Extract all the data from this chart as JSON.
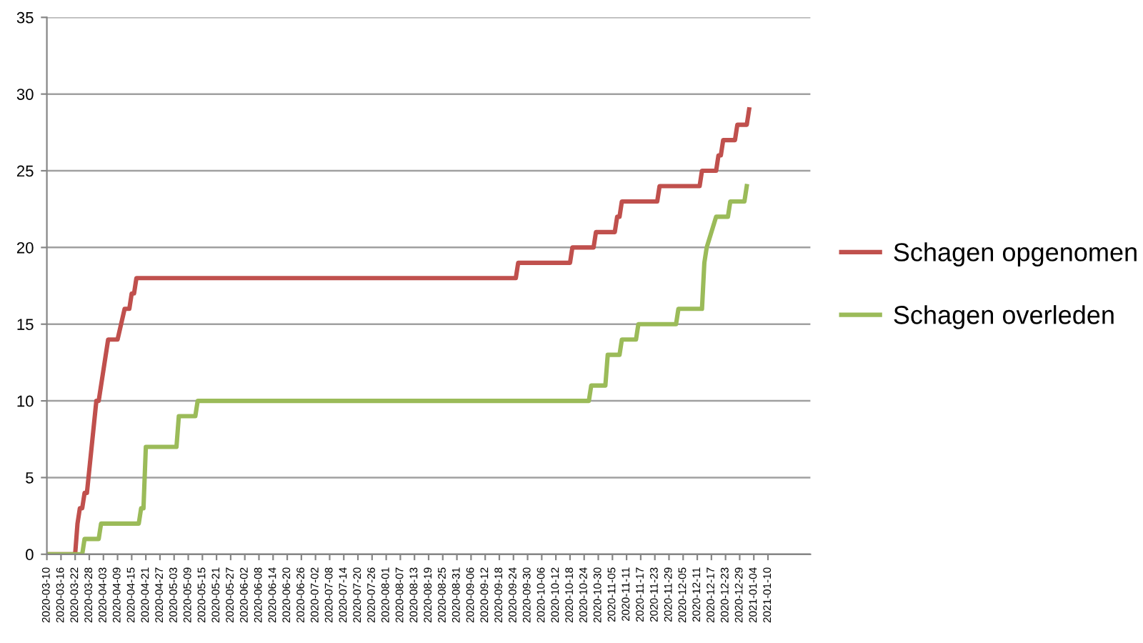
{
  "chart_data": {
    "type": "line",
    "xlim": [
      "2020-03-10",
      "2021-01-28"
    ],
    "xticks": [
      "2020-03-10",
      "2020-03-16",
      "2020-03-22",
      "2020-03-28",
      "2020-04-03",
      "2020-04-09",
      "2020-04-15",
      "2020-04-21",
      "2020-04-27",
      "2020-05-03",
      "2020-05-09",
      "2020-05-15",
      "2020-05-21",
      "2020-05-27",
      "2020-06-02",
      "2020-06-08",
      "2020-06-14",
      "2020-06-20",
      "2020-06-26",
      "2020-07-02",
      "2020-07-08",
      "2020-07-14",
      "2020-07-20",
      "2020-07-26",
      "2020-08-01",
      "2020-08-07",
      "2020-08-13",
      "2020-08-19",
      "2020-08-25",
      "2020-08-31",
      "2020-09-06",
      "2020-09-12",
      "2020-09-18",
      "2020-09-24",
      "2020-09-30",
      "2020-10-06",
      "2020-10-12",
      "2020-10-18",
      "2020-10-24",
      "2020-10-30",
      "2020-11-05",
      "2020-11-11",
      "2020-11-17",
      "2020-11-23",
      "2020-11-29",
      "2020-12-05",
      "2020-12-11",
      "2020-12-17",
      "2020-12-23",
      "2020-12-29",
      "2021-01-04",
      "2021-01-10"
    ],
    "ylim": [
      0,
      35
    ],
    "yticks": [
      0,
      5,
      10,
      15,
      20,
      25,
      30,
      35
    ],
    "grid": "y",
    "legend": "right",
    "marker": "none",
    "line_style": "solid",
    "series": [
      {
        "name": "Schagen opgenomen",
        "color": "#c0504d",
        "x": [
          "2020-03-10",
          "2020-03-22",
          "2020-03-23",
          "2020-03-24",
          "2020-03-25",
          "2020-03-26",
          "2020-03-27",
          "2020-03-31",
          "2020-04-01",
          "2020-04-05",
          "2020-04-09",
          "2020-04-12",
          "2020-04-14",
          "2020-04-15",
          "2020-04-16",
          "2020-04-17",
          "2020-09-25",
          "2020-09-26",
          "2020-10-18",
          "2020-10-19",
          "2020-10-28",
          "2020-10-29",
          "2020-11-06",
          "2020-11-07",
          "2020-11-08",
          "2020-11-09",
          "2020-11-24",
          "2020-11-25",
          "2020-12-12",
          "2020-12-13",
          "2020-12-19",
          "2020-12-20",
          "2020-12-21",
          "2020-12-22",
          "2020-12-27",
          "2020-12-28",
          "2021-01-01",
          "2021-01-02"
        ],
        "values": [
          0,
          0,
          2,
          3,
          3,
          4,
          4,
          10,
          10,
          14,
          14,
          16,
          16,
          17,
          17,
          18,
          18,
          19,
          19,
          20,
          20,
          21,
          21,
          22,
          22,
          23,
          23,
          24,
          24,
          25,
          25,
          26,
          26,
          27,
          27,
          28,
          28,
          29
        ]
      },
      {
        "name": "Schagen overleden",
        "color": "#9bbb59",
        "x": [
          "2020-03-10",
          "2020-03-25",
          "2020-03-26",
          "2020-04-01",
          "2020-04-02",
          "2020-04-18",
          "2020-04-19",
          "2020-04-20",
          "2020-04-21",
          "2020-05-04",
          "2020-05-05",
          "2020-05-12",
          "2020-05-13",
          "2020-10-26",
          "2020-10-27",
          "2020-11-02",
          "2020-11-03",
          "2020-11-08",
          "2020-11-09",
          "2020-11-15",
          "2020-11-16",
          "2020-12-02",
          "2020-12-03",
          "2020-12-13",
          "2020-12-14",
          "2020-12-15",
          "2020-12-19",
          "2020-12-24",
          "2020-12-25",
          "2020-12-31",
          "2021-01-01"
        ],
        "values": [
          0,
          0,
          1,
          1,
          2,
          2,
          3,
          3,
          7,
          7,
          9,
          9,
          10,
          10,
          11,
          11,
          13,
          13,
          14,
          14,
          15,
          15,
          16,
          16,
          19,
          20,
          22,
          22,
          23,
          23,
          24
        ]
      }
    ]
  }
}
